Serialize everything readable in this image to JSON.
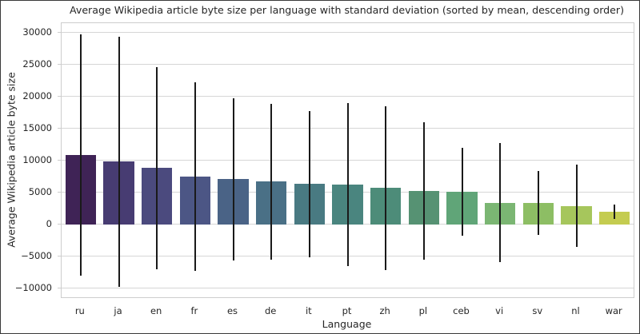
{
  "chart_data": {
    "type": "bar",
    "title": "Average Wikipedia article byte size per language with standard deviation (sorted by mean, descending order)",
    "xlabel": "Language",
    "ylabel": "Average Wikipedia article byte size",
    "categories": [
      "ru",
      "ja",
      "en",
      "fr",
      "es",
      "de",
      "it",
      "pt",
      "zh",
      "pl",
      "ceb",
      "vi",
      "sv",
      "nl",
      "war"
    ],
    "series": [
      {
        "name": "mean",
        "values": [
          10900,
          9800,
          8800,
          7500,
          7100,
          6700,
          6300,
          6250,
          5700,
          5250,
          5150,
          3400,
          3300,
          2900,
          1950
        ]
      },
      {
        "name": "std",
        "values": [
          18900,
          19600,
          15800,
          14800,
          12700,
          12200,
          11400,
          12800,
          12800,
          10800,
          6900,
          9350,
          5000,
          6400,
          1150
        ]
      }
    ],
    "error_bars": "mean ± 1 standard deviation",
    "ylim": [
      -11400,
      31500
    ],
    "yticks": [
      -10000,
      -5000,
      0,
      5000,
      10000,
      15000,
      20000,
      25000,
      30000
    ],
    "ytick_labels": [
      "−10000",
      "−5000",
      "0",
      "5000",
      "10000",
      "15000",
      "20000",
      "25000",
      "30000"
    ],
    "grid": true,
    "legend": "none",
    "bar_colors": [
      "#3f2356",
      "#473c72",
      "#4b4a7e",
      "#4c5685",
      "#4a6386",
      "#4a7086",
      "#497a82",
      "#4a857f",
      "#4d8c79",
      "#569273",
      "#60a578",
      "#7bb673",
      "#8dbe64",
      "#a6c65c",
      "#c4cc50"
    ],
    "error_bar_color": "#1a1a1a",
    "grid_color": "#d6d6d6",
    "text_color": "#262626"
  }
}
